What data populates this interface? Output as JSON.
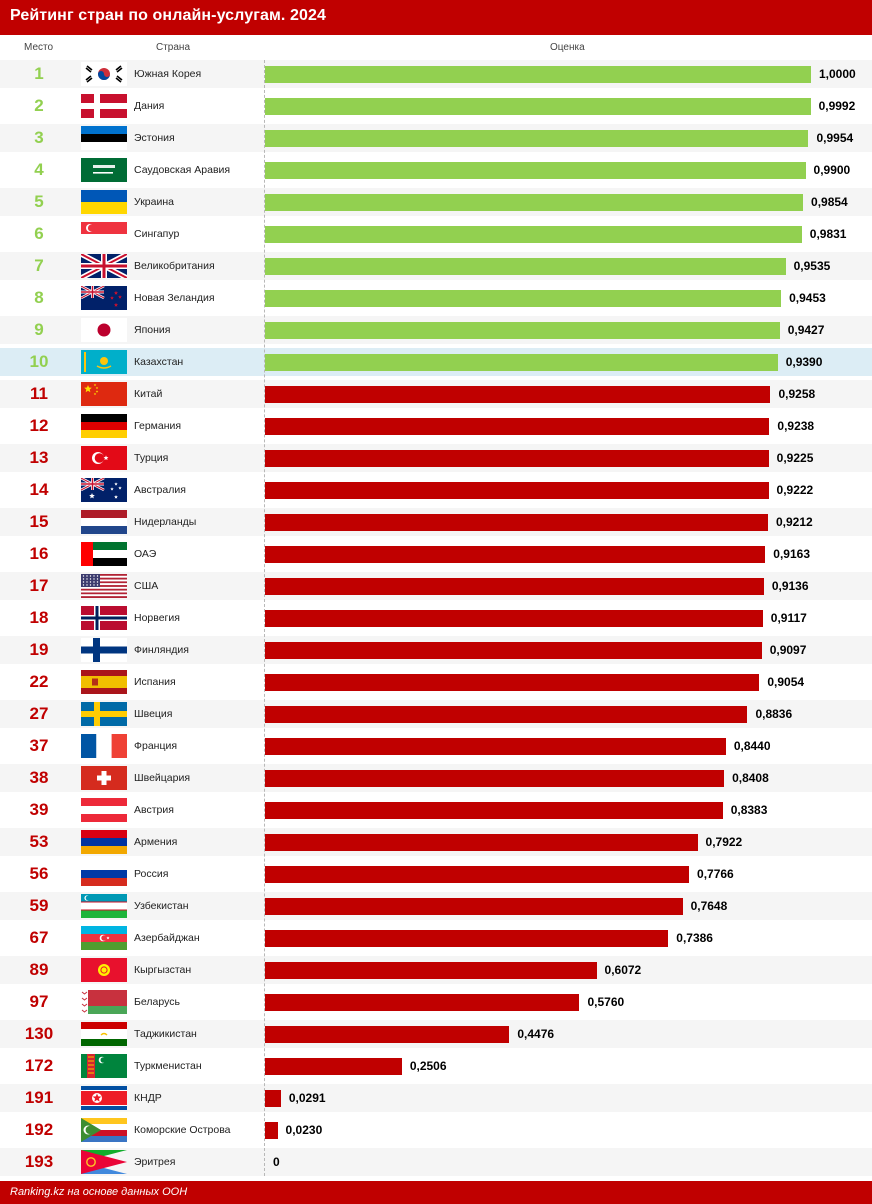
{
  "header": {
    "title": "Рейтинг стран по онлайн-услугам. 2024"
  },
  "columns": {
    "place": "Место",
    "country": "Страна",
    "score": "Оценка"
  },
  "colors": {
    "top10_bar": "#92d050",
    "top10_rank": "#92d050",
    "rest_bar": "#c00000",
    "rest_rank": "#c00000",
    "header_bg": "#c00000",
    "highlight_row": "#dcedf5"
  },
  "footer": {
    "source": "Ranking.kz на основе данных ООН"
  },
  "chart_data": {
    "type": "bar",
    "orientation": "horizontal",
    "title": "Рейтинг стран по онлайн-услугам. 2024",
    "xlabel": "Оценка",
    "xlim": [
      0,
      1
    ],
    "highlight": "Казахстан",
    "rows": [
      {
        "rank": "1",
        "country": "Южная Корея",
        "value": 1.0,
        "label": "1,0000",
        "flag": "kr"
      },
      {
        "rank": "2",
        "country": "Дания",
        "value": 0.9992,
        "label": "0,9992",
        "flag": "dk"
      },
      {
        "rank": "3",
        "country": "Эстония",
        "value": 0.9954,
        "label": "0,9954",
        "flag": "ee"
      },
      {
        "rank": "4",
        "country": "Саудовская Аравия",
        "value": 0.99,
        "label": "0,9900",
        "flag": "sa"
      },
      {
        "rank": "5",
        "country": "Украина",
        "value": 0.9854,
        "label": "0,9854",
        "flag": "ua"
      },
      {
        "rank": "6",
        "country": "Сингапур",
        "value": 0.9831,
        "label": "0,9831",
        "flag": "sg"
      },
      {
        "rank": "7",
        "country": "Великобритания",
        "value": 0.9535,
        "label": "0,9535",
        "flag": "gb"
      },
      {
        "rank": "8",
        "country": "Новая Зеландия",
        "value": 0.9453,
        "label": "0,9453",
        "flag": "nz"
      },
      {
        "rank": "9",
        "country": "Япония",
        "value": 0.9427,
        "label": "0,9427",
        "flag": "jp"
      },
      {
        "rank": "10",
        "country": "Казахстан",
        "value": 0.939,
        "label": "0,9390",
        "flag": "kz"
      },
      {
        "rank": "11",
        "country": "Китай",
        "value": 0.9258,
        "label": "0,9258",
        "flag": "cn"
      },
      {
        "rank": "12",
        "country": "Германия",
        "value": 0.9238,
        "label": "0,9238",
        "flag": "de"
      },
      {
        "rank": "13",
        "country": "Турция",
        "value": 0.9225,
        "label": "0,9225",
        "flag": "tr"
      },
      {
        "rank": "14",
        "country": "Австралия",
        "value": 0.9222,
        "label": "0,9222",
        "flag": "au"
      },
      {
        "rank": "15",
        "country": "Нидерланды",
        "value": 0.9212,
        "label": "0,9212",
        "flag": "nl"
      },
      {
        "rank": "16",
        "country": "ОАЭ",
        "value": 0.9163,
        "label": "0,9163",
        "flag": "ae"
      },
      {
        "rank": "17",
        "country": "США",
        "value": 0.9136,
        "label": "0,9136",
        "flag": "us"
      },
      {
        "rank": "18",
        "country": "Норвегия",
        "value": 0.9117,
        "label": "0,9117",
        "flag": "no"
      },
      {
        "rank": "19",
        "country": "Финляндия",
        "value": 0.9097,
        "label": "0,9097",
        "flag": "fi"
      },
      {
        "rank": "22",
        "country": "Испания",
        "value": 0.9054,
        "label": "0,9054",
        "flag": "es"
      },
      {
        "rank": "27",
        "country": "Швеция",
        "value": 0.8836,
        "label": "0,8836",
        "flag": "se"
      },
      {
        "rank": "37",
        "country": "Франция",
        "value": 0.844,
        "label": "0,8440",
        "flag": "fr"
      },
      {
        "rank": "38",
        "country": "Швейцария",
        "value": 0.8408,
        "label": "0,8408",
        "flag": "ch"
      },
      {
        "rank": "39",
        "country": "Австрия",
        "value": 0.8383,
        "label": "0,8383",
        "flag": "at"
      },
      {
        "rank": "53",
        "country": "Армения",
        "value": 0.7922,
        "label": "0,7922",
        "flag": "am"
      },
      {
        "rank": "56",
        "country": "Россия",
        "value": 0.7766,
        "label": "0,7766",
        "flag": "ru"
      },
      {
        "rank": "59",
        "country": "Узбекистан",
        "value": 0.7648,
        "label": "0,7648",
        "flag": "uz"
      },
      {
        "rank": "67",
        "country": "Азербайджан",
        "value": 0.7386,
        "label": "0,7386",
        "flag": "az"
      },
      {
        "rank": "89",
        "country": "Кыргызстан",
        "value": 0.6072,
        "label": "0,6072",
        "flag": "kg"
      },
      {
        "rank": "97",
        "country": "Беларусь",
        "value": 0.576,
        "label": "0,5760",
        "flag": "by"
      },
      {
        "rank": "130",
        "country": "Таджикистан",
        "value": 0.4476,
        "label": "0,4476",
        "flag": "tj"
      },
      {
        "rank": "172",
        "country": "Туркменистан",
        "value": 0.2506,
        "label": "0,2506",
        "flag": "tm"
      },
      {
        "rank": "191",
        "country": "КНДР",
        "value": 0.0291,
        "label": "0,0291",
        "flag": "kp"
      },
      {
        "rank": "192",
        "country": "Коморские Острова",
        "value": 0.023,
        "label": "0,0230",
        "flag": "km"
      },
      {
        "rank": "193",
        "country": "Эритрея",
        "value": 0,
        "label": "0",
        "flag": "er"
      }
    ]
  }
}
